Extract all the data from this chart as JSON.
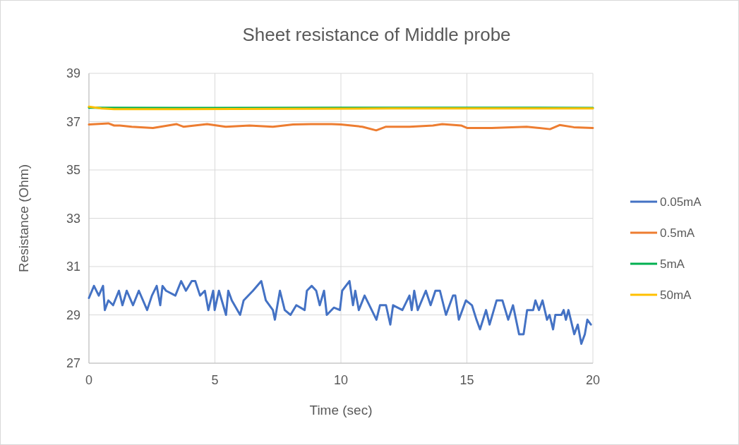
{
  "chart_data": {
    "type": "line",
    "title": "Sheet resistance of Middle probe",
    "xlabel": "Time (sec)",
    "ylabel": "Resistance (Ohm)",
    "xlim": [
      0,
      20
    ],
    "xticks": [
      0,
      5,
      10,
      15,
      20
    ],
    "ylim": [
      27,
      39
    ],
    "yticks": [
      27,
      29,
      31,
      33,
      35,
      37,
      39
    ],
    "grid": true,
    "legend": "right",
    "marker": "none",
    "line_style": "solid",
    "series": [
      {
        "name": "0.05mA",
        "color": "#4472c4",
        "x": [
          0,
          0.2,
          0.39,
          0.56,
          0.63,
          0.77,
          0.96,
          1.19,
          1.33,
          1.5,
          1.75,
          1.98,
          2.31,
          2.5,
          2.69,
          2.83,
          2.92,
          3.06,
          3.43,
          3.66,
          3.85,
          4.08,
          4.22,
          4.41,
          4.6,
          4.74,
          4.93,
          4.99,
          5.16,
          5.44,
          5.53,
          5.67,
          6.0,
          6.14,
          6.51,
          6.84,
          7.02,
          7.3,
          7.38,
          7.58,
          7.77,
          8.0,
          8.23,
          8.56,
          8.65,
          8.84,
          9.02,
          9.16,
          9.33,
          9.44,
          9.72,
          9.96,
          10.05,
          10.34,
          10.48,
          10.57,
          10.71,
          10.94,
          11.13,
          11.41,
          11.55,
          11.79,
          11.96,
          12.07,
          12.44,
          12.72,
          12.81,
          12.91,
          13.05,
          13.37,
          13.56,
          13.75,
          13.93,
          14.17,
          14.45,
          14.54,
          14.68,
          14.96,
          15.2,
          15.38,
          15.52,
          15.76,
          15.9,
          16.18,
          16.41,
          16.64,
          16.83,
          17.07,
          17.25,
          17.39,
          17.63,
          17.72,
          17.86,
          18.0,
          18.18,
          18.28,
          18.42,
          18.51,
          18.75,
          18.84,
          18.93,
          19.03,
          19.26,
          19.4,
          19.54,
          19.68,
          19.78,
          19.92
        ],
        "values": [
          29.7,
          30.2,
          29.8,
          30.2,
          29.2,
          29.6,
          29.4,
          30.0,
          29.4,
          30.0,
          29.4,
          30.0,
          29.2,
          29.8,
          30.2,
          29.4,
          30.2,
          30.0,
          29.8,
          30.4,
          30.0,
          30.4,
          30.4,
          29.8,
          30.0,
          29.2,
          30.0,
          29.2,
          30.0,
          29.0,
          30.0,
          29.6,
          29.0,
          29.6,
          30.0,
          30.4,
          29.6,
          29.2,
          28.8,
          30.0,
          29.2,
          29.0,
          29.4,
          29.2,
          30.0,
          30.2,
          30.0,
          29.4,
          30.0,
          29.0,
          29.3,
          29.2,
          30.0,
          30.4,
          29.4,
          30.0,
          29.2,
          29.8,
          29.4,
          28.8,
          29.4,
          29.4,
          28.6,
          29.4,
          29.2,
          29.8,
          29.2,
          30.0,
          29.2,
          30.0,
          29.4,
          30.0,
          30.0,
          29.0,
          29.8,
          29.8,
          28.8,
          29.6,
          29.4,
          28.8,
          28.4,
          29.2,
          28.6,
          29.6,
          29.6,
          28.8,
          29.4,
          28.2,
          28.2,
          29.2,
          29.2,
          29.6,
          29.2,
          29.6,
          28.8,
          29.0,
          28.4,
          29.0,
          29.0,
          29.2,
          28.8,
          29.2,
          28.2,
          28.6,
          27.8,
          28.2,
          28.8,
          28.6
        ]
      },
      {
        "name": "0.5mA",
        "color": "#ed7d31",
        "x": [
          0,
          0.77,
          1.0,
          1.23,
          1.7,
          2.54,
          3.47,
          3.75,
          4.69,
          5.43,
          6.37,
          7.3,
          8.1,
          8.8,
          9.64,
          10.0,
          10.85,
          11.4,
          11.79,
          12.72,
          13.65,
          14.02,
          14.77,
          15.0,
          15.98,
          17.37,
          18.3,
          18.68,
          19.24,
          20.0
        ],
        "values": [
          36.88,
          36.93,
          36.84,
          36.84,
          36.79,
          36.74,
          36.9,
          36.79,
          36.9,
          36.79,
          36.84,
          36.79,
          36.88,
          36.9,
          36.9,
          36.88,
          36.79,
          36.64,
          36.79,
          36.79,
          36.84,
          36.9,
          36.84,
          36.74,
          36.74,
          36.79,
          36.69,
          36.86,
          36.77,
          36.74
        ]
      },
      {
        "name": "5mA",
        "color": "#00b050",
        "x": [
          0,
          5,
          10,
          15,
          20
        ],
        "values": [
          37.58,
          37.57,
          37.58,
          37.58,
          37.57
        ]
      },
      {
        "name": "50mA",
        "color": "#ffc000",
        "x": [
          0,
          0.5,
          1,
          3,
          8,
          12,
          20
        ],
        "values": [
          37.62,
          37.55,
          37.52,
          37.52,
          37.53,
          37.55,
          37.55
        ]
      }
    ]
  }
}
